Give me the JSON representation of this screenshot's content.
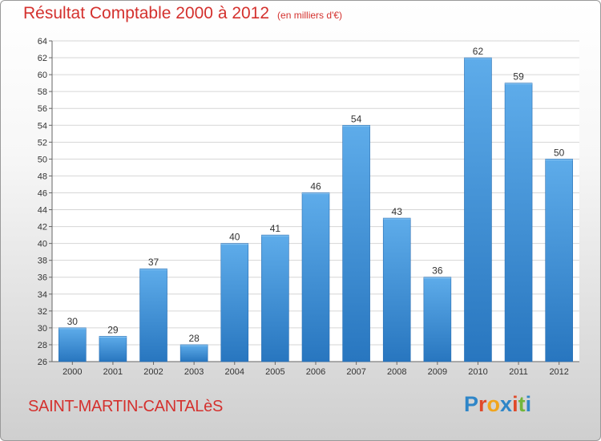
{
  "chart_data": {
    "type": "bar",
    "title": "Résultat Comptable 2000 à 2012",
    "subtitle": "(en milliers d'€)",
    "categories": [
      "2000",
      "2001",
      "2002",
      "2003",
      "2004",
      "2005",
      "2006",
      "2007",
      "2008",
      "2009",
      "2010",
      "2011",
      "2012"
    ],
    "values": [
      30,
      29,
      37,
      28,
      40,
      41,
      46,
      54,
      43,
      36,
      62,
      59,
      50
    ],
    "ylim": [
      26,
      64
    ],
    "yticks": [
      26,
      28,
      30,
      32,
      34,
      36,
      38,
      40,
      42,
      44,
      46,
      48,
      50,
      52,
      54,
      56,
      58,
      60,
      62,
      64
    ],
    "grid": true,
    "bar_color": "#3d8fd6"
  },
  "commune": "SAINT-MARTIN-CANTALèS",
  "logo": {
    "text": "Proxiti",
    "letter_colors": [
      "#2f86c8",
      "#e04a2a",
      "#f1a51d",
      "#2f86c8",
      "#e04a2a",
      "#72b63a",
      "#2f86c8"
    ]
  }
}
